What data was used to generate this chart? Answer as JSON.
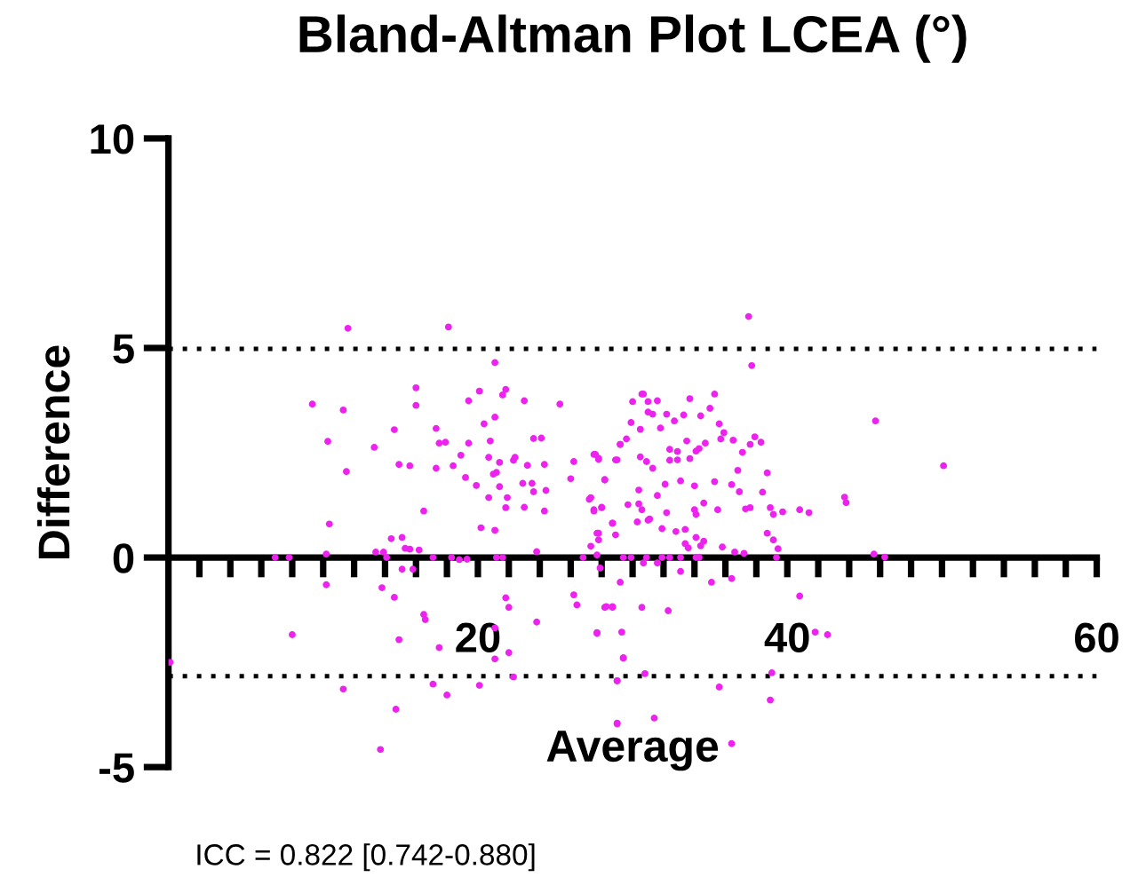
{
  "chart_data": {
    "type": "scatter",
    "title": "Bland-Altman Plot LCEA (°)",
    "xlabel": "Average",
    "ylabel": "Difference",
    "annotations": [
      "ICC = 0.822 [0.742-0.880]"
    ],
    "marker": "circle",
    "grid": false,
    "xlim": [
      0,
      60
    ],
    "ylim": [
      -5,
      10
    ],
    "xticks": [
      {
        "value": 2,
        "label": null
      },
      {
        "value": 4,
        "label": null
      },
      {
        "value": 6,
        "label": null
      },
      {
        "value": 8,
        "label": null
      },
      {
        "value": 10,
        "label": null
      },
      {
        "value": 12,
        "label": null
      },
      {
        "value": 14,
        "label": null
      },
      {
        "value": 16,
        "label": null
      },
      {
        "value": 18,
        "label": null
      },
      20,
      {
        "value": 22,
        "label": null
      },
      {
        "value": 24,
        "label": null
      },
      {
        "value": 26,
        "label": null
      },
      {
        "value": 28,
        "label": null
      },
      {
        "value": 30,
        "label": null
      },
      {
        "value": 32,
        "label": null
      },
      {
        "value": 34,
        "label": null
      },
      {
        "value": 36,
        "label": null
      },
      {
        "value": 38,
        "label": null
      },
      40,
      {
        "value": 42,
        "label": null
      },
      {
        "value": 44,
        "label": null
      },
      {
        "value": 46,
        "label": null
      },
      {
        "value": 48,
        "label": null
      },
      {
        "value": 50,
        "label": null
      },
      {
        "value": 52,
        "label": null
      },
      {
        "value": 54,
        "label": null
      },
      {
        "value": 56,
        "label": null
      },
      {
        "value": 58,
        "label": null
      },
      60
    ],
    "yticks": [
      -5,
      0,
      5,
      10
    ],
    "ref_lines": [
      {
        "axis": "y",
        "value": 4.98,
        "color": "#000000",
        "line_style": "dotted"
      },
      {
        "axis": "y",
        "value": -2.83,
        "color": "#000000",
        "line_style": "dotted"
      }
    ],
    "series": [
      {
        "color": "#ee22ee",
        "x": [
          11.6,
          18.1,
          21.1,
          9.3,
          11.3,
          16.0,
          16.0,
          20.1,
          19.4,
          21.6,
          21.8,
          23.0,
          25.3,
          21.1,
          20.4,
          14.6,
          17.3,
          10.3,
          13.3,
          17.5,
          17.9,
          19.4,
          20.8,
          23.6,
          24.1,
          18.9,
          18.4,
          20.7,
          21.4,
          22.3,
          22.4,
          23.2,
          24.3,
          26.2,
          27.5,
          27.8,
          29.0,
          29.2,
          14.9,
          15.6,
          17.3,
          11.5,
          19.2,
          19.9,
          21.0,
          21.2,
          21.4,
          22.9,
          23.5,
          23.6,
          24.4,
          26.0,
          28.2,
          20.7,
          21.8,
          21.9,
          23.0,
          24.3,
          27.3,
          27.5,
          28.0,
          16.5,
          10.4,
          20.2,
          21.1,
          28.7,
          27.8,
          14.4,
          15.1,
          15.3,
          15.6,
          16.2,
          13.4,
          13.9,
          27.3,
          23.8,
          10.2,
          6.9,
          7.8,
          14.1,
          17.1,
          18.3,
          18.8,
          19.3,
          21.2,
          21.6,
          26.8,
          27.7,
          15.1,
          15.8,
          10.2,
          13.8,
          14.6,
          16.5,
          16.6,
          21.8,
          22.0,
          21.1,
          23.8,
          26.2,
          26.4,
          27.7,
          28.2,
          28.7,
          8.0,
          14.9,
          17.5,
          21.1,
          22.0,
          22.3,
          20.1,
          17.1,
          18.0,
          11.3,
          14.7,
          13.7,
          0.1,
          29.0,
          29.4,
          29.0,
          29.3,
          37.5,
          37.7,
          30.6,
          30.7,
          30.0,
          31.0,
          31.6,
          31.0,
          31.3,
          33.7,
          35.3,
          35.0,
          34.4,
          33.3,
          32.7,
          32.2,
          29.9,
          30.5,
          31.8,
          35.6,
          35.7,
          35.9,
          36.5,
          37.9,
          38.3,
          37.1,
          37.6,
          29.6,
          29.2,
          32.4,
          32.9,
          33.5,
          34.3,
          34.7,
          27.6,
          27.8,
          28.9,
          30.5,
          30.9,
          31.3,
          32.4,
          32.9,
          33.7,
          34.1,
          36.8,
          28.2,
          27.2,
          32.1,
          33.1,
          34.0,
          35.3,
          36.4,
          38.7,
          30.4,
          31.6,
          36.9,
          38.4,
          29.7,
          28.0,
          27.5,
          30.6,
          30.4,
          32.2,
          34.0,
          34.1,
          34.6,
          35.5,
          37.3,
          37.6,
          38.9,
          39.1,
          39.7,
          40.8,
          43.7,
          43.8,
          45.7,
          50.1,
          28.7,
          28.9,
          31.0,
          31.1,
          31.9,
          32.8,
          33.4,
          27.7,
          27.8,
          30.3,
          34.1,
          34.6,
          34.4,
          35.8,
          36.6,
          37.2,
          38.7,
          39.1,
          39.4,
          39.3,
          33.4,
          33.6,
          45.6,
          29.4,
          29.9,
          30.9,
          31.9,
          32.4,
          33.1,
          34.1,
          34.3,
          27.9,
          30.7,
          31.6,
          33.1,
          35.1,
          36.4,
          29.2,
          40.8,
          28.3,
          28.7,
          30.6,
          32.3,
          27.7,
          41.8,
          29.4,
          30.8,
          39.0,
          29.0,
          35.6,
          38.9,
          31.4,
          29.0,
          36.4,
          42.6,
          46.3,
          41.4
        ],
        "values": [
          5.47,
          5.5,
          4.65,
          3.66,
          3.52,
          4.05,
          3.63,
          3.97,
          3.74,
          3.88,
          4.01,
          3.74,
          3.66,
          3.35,
          3.19,
          3.05,
          3.08,
          2.77,
          2.63,
          2.73,
          2.75,
          2.73,
          2.78,
          2.84,
          2.85,
          2.44,
          2.19,
          2.39,
          2.27,
          2.32,
          2.39,
          2.2,
          2.22,
          2.29,
          2.46,
          2.34,
          2.33,
          2.7,
          2.22,
          2.19,
          2.13,
          2.05,
          1.91,
          1.72,
          1.99,
          2.03,
          1.69,
          1.77,
          1.77,
          1.57,
          1.6,
          1.88,
          1.85,
          1.43,
          1.19,
          1.43,
          1.2,
          1.11,
          1.43,
          1.11,
          1.19,
          1.11,
          0.8,
          0.71,
          0.65,
          0.82,
          0.58,
          0.45,
          0.48,
          0.22,
          0.2,
          0.18,
          0.13,
          0.13,
          0.27,
          0.14,
          0.08,
          0,
          0,
          0,
          0,
          0,
          -0.05,
          -0.04,
          0,
          0,
          0,
          0.06,
          -0.28,
          -0.28,
          -0.65,
          -0.72,
          -0.95,
          -1.36,
          -1.48,
          -0.96,
          -1.19,
          -1.68,
          -1.54,
          -0.89,
          -1.13,
          -1.79,
          -1.19,
          -1.19,
          -1.84,
          -1.96,
          -2.15,
          -2.42,
          -2.27,
          -2.85,
          -3.05,
          -3.02,
          -3.28,
          -3.14,
          -3.62,
          -4.58,
          -2.5,
          -3.97,
          -2.4,
          -2.94,
          -1.78,
          5.75,
          4.58,
          3.9,
          3.9,
          3.72,
          3.72,
          3.74,
          3.47,
          3.42,
          3.79,
          3.9,
          3.56,
          3.38,
          3.4,
          3.26,
          3.42,
          3.22,
          3.06,
          3.09,
          3.19,
          2.83,
          2.98,
          2.8,
          2.88,
          2.75,
          2.51,
          2.7,
          2.83,
          2.7,
          2.58,
          2.53,
          2.78,
          2.6,
          2.73,
          2.46,
          2.37,
          2.33,
          2.4,
          2.29,
          2.13,
          2.32,
          2.33,
          2.36,
          2.54,
          2.08,
          1.86,
          1.39,
          1.75,
          1.83,
          1.71,
          1.81,
          1.74,
          2.02,
          1.61,
          1.48,
          1.57,
          1.56,
          1.26,
          1.2,
          1.14,
          1.14,
          1.28,
          1.07,
          1.14,
          1.03,
          1.3,
          1.14,
          1.16,
          1.19,
          1.19,
          1.03,
          1.09,
          1.14,
          1.44,
          1.31,
          3.26,
          2.19,
          0.82,
          0.54,
          0.89,
          0.92,
          0.69,
          0.62,
          0.67,
          0.58,
          0.42,
          0.85,
          0.48,
          0.39,
          0.28,
          0.25,
          0.13,
          0.1,
          0.58,
          0.42,
          0.21,
          0,
          0.33,
          0.23,
          0.08,
          0,
          0,
          0,
          0,
          0,
          0,
          0,
          0,
          -0.25,
          -0.13,
          -0.13,
          -0.33,
          -0.59,
          -0.5,
          -0.59,
          -0.92,
          -1.17,
          -1.17,
          -1.19,
          -1.27,
          -1.81,
          -1.78,
          -2.39,
          -2.77,
          -2.75,
          -2.94,
          -3.09,
          -3.4,
          -3.83,
          -3.95,
          -4.44,
          -1.84,
          0.01,
          1.07
        ]
      }
    ]
  }
}
